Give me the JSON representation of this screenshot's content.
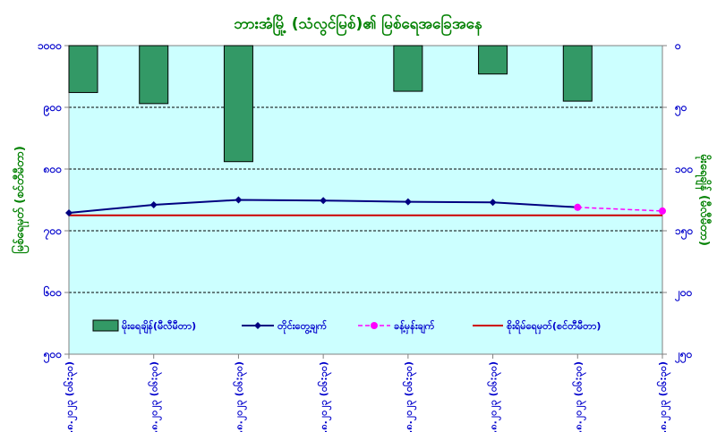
{
  "chart_data": {
    "type": "bar+line",
    "title": "ဘားအံမြို့ (သံလွင်မြစ်)၏ မြစ်ရေအခြေအနေ",
    "ylabel_left": "မြစ်ရေမှတ် (စင်တီမီတာ)",
    "ylabel_right": "မိုးရေချိန် (မီလီမီတာ)",
    "left_axis": {
      "ylim": [
        500,
        1000
      ],
      "ticks": [
        1000,
        900,
        800,
        700,
        600,
        500
      ],
      "tick_labels": [
        "၁၀၀၀",
        "၉၀၀",
        "၈၀၀",
        "၇၀၀",
        "၆၀၀",
        "၅၀၀"
      ]
    },
    "right_axis": {
      "ylim": [
        0,
        250
      ],
      "inverted": true,
      "ticks": [
        0,
        50,
        100,
        150,
        200,
        250
      ],
      "tick_labels": [
        "၀",
        "၅၀",
        "၁၀၀",
        "၁၅၀",
        "၂၀၀",
        "၂၅၀"
      ]
    },
    "categories": [
      "၂၃.၈.၂၀၂၃ (၀၆:၃၀)",
      "၂၄.၈.၂၀၂၃ (၀၆:၃၀)",
      "၂၅.၈.၂၀၂၃ (၀၆:၃၀)",
      "၂၆.၈.၂၀၂၃ (၀၆:၃၀)",
      "၂၇.၈.၂၀၂၃ (၀၆:၃၀)",
      "၂၈.၈.၂၀၂၃ (၀၆:၃၀)",
      "၂၉.၈.၂၀၂၃ (၀၆:၃၀)",
      "၃၀.၈.၂၀၂၃ (၀၆:၃၀)"
    ],
    "series": [
      {
        "name": "မိုးရေချိန်(မီလီမီတာ)",
        "kind": "bar",
        "axis": "right",
        "color": "#339966",
        "values": [
          38,
          47,
          94,
          null,
          37,
          23,
          45,
          null
        ]
      },
      {
        "name": "တိုင်းတွေ့ချက်",
        "kind": "line",
        "axis": "left",
        "color": "#000080",
        "values": [
          729,
          742,
          750,
          749,
          747,
          746,
          738,
          null
        ]
      },
      {
        "name": "ခန့်မှန်းချက်",
        "kind": "line-dashed",
        "axis": "left",
        "color": "#ff00ff",
        "values": [
          null,
          null,
          null,
          null,
          null,
          null,
          738,
          732
        ]
      },
      {
        "name": "စိုးရိမ်ရေမှတ်(စင်တီမီတာ)",
        "kind": "hline",
        "axis": "left",
        "color": "#cc0000",
        "value": 725
      }
    ],
    "grid": true,
    "legend_position": "bottom-inside",
    "colors": {
      "plot_background": "#ccffff",
      "title": "#008000",
      "left_axis_labels": "#0000cc",
      "right_axis_labels": "#0000cc",
      "axis_titles": "#008000",
      "x_labels": "#0000cc"
    }
  }
}
